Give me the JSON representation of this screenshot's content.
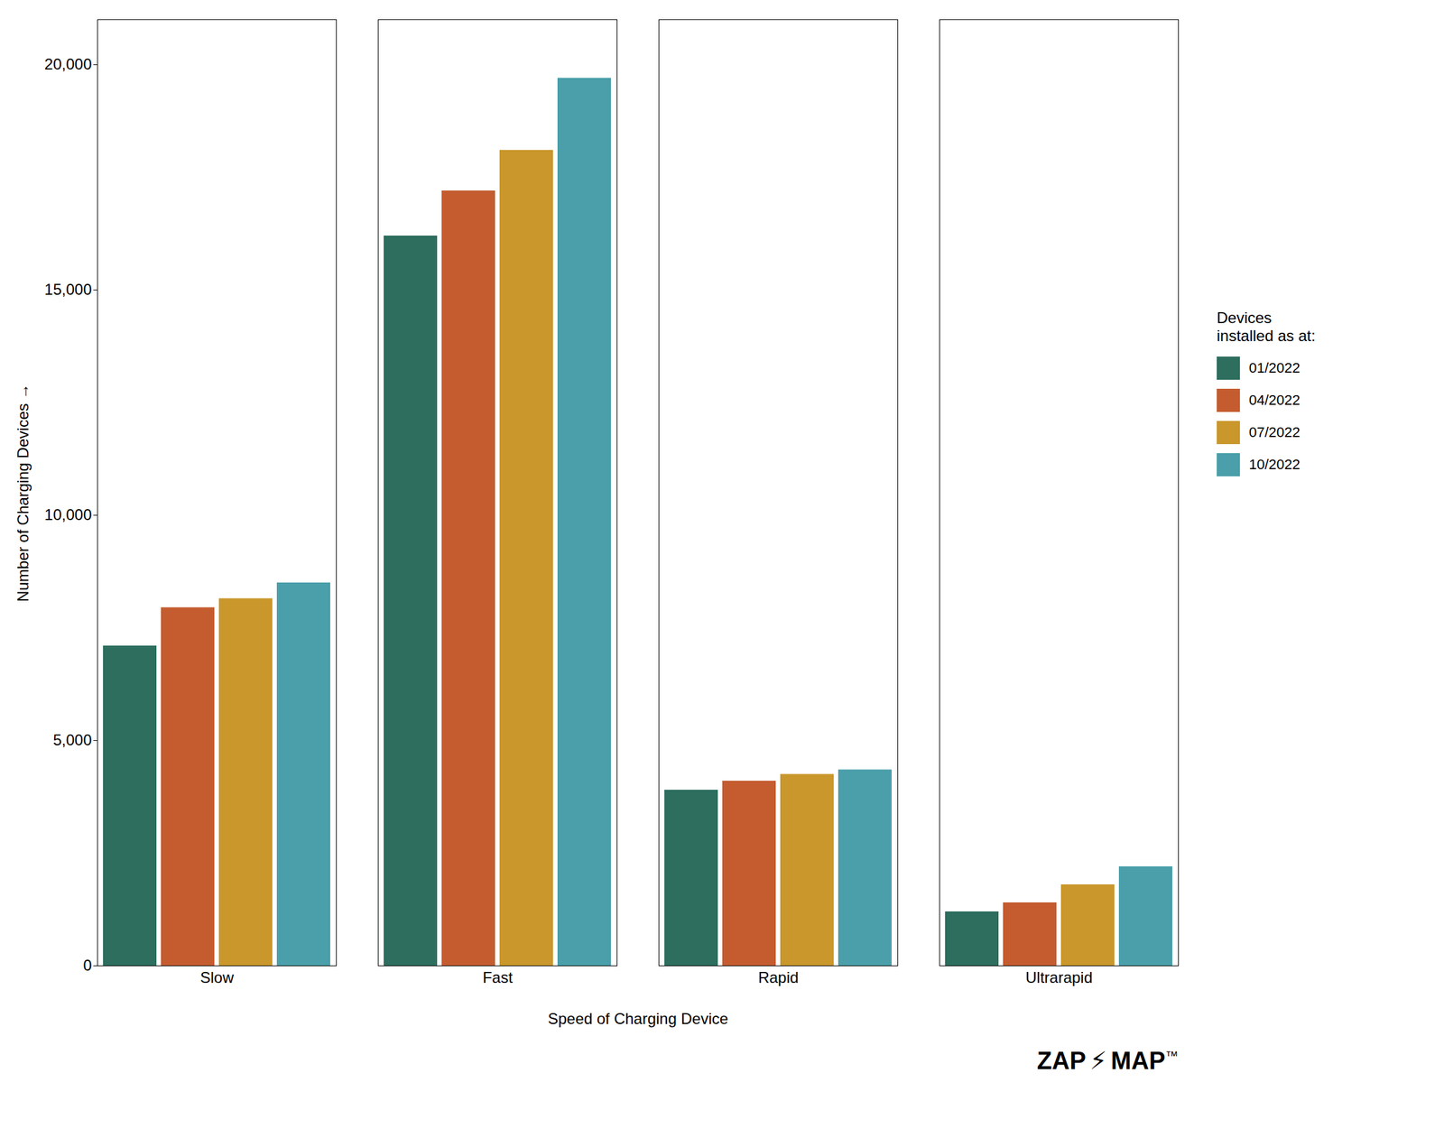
{
  "chart_data": {
    "type": "bar",
    "categories": [
      "Slow",
      "Fast",
      "Rapid",
      "Ultrarapid"
    ],
    "series": [
      {
        "name": "01/2022",
        "color": "#2d6e5e",
        "values": [
          7100,
          16200,
          3900,
          1200
        ]
      },
      {
        "name": "04/2022",
        "color": "#c45c30",
        "values": [
          7950,
          17200,
          4100,
          1400
        ]
      },
      {
        "name": "07/2022",
        "color": "#c9972b",
        "values": [
          8150,
          18100,
          4250,
          1800
        ]
      },
      {
        "name": "10/2022",
        "color": "#4a9faa",
        "values": [
          8500,
          19700,
          4350,
          2200
        ]
      }
    ],
    "xlabel": "Speed of Charging Device",
    "ylabel": "Number of Charging Devices",
    "ylim": [
      0,
      21000
    ],
    "yticks": [
      0,
      {
        "value": 5000,
        "label": "5,000"
      },
      {
        "value": 10000,
        "label": "10,000"
      },
      {
        "value": 15000,
        "label": "15,000"
      },
      {
        "value": 20000,
        "label": "20,000"
      }
    ],
    "grid": false,
    "legend": "right",
    "legend_title": "Devices\ninstalled as at:",
    "annotations": [
      "ZAP",
      "⚡",
      "MAP",
      "™"
    ]
  }
}
